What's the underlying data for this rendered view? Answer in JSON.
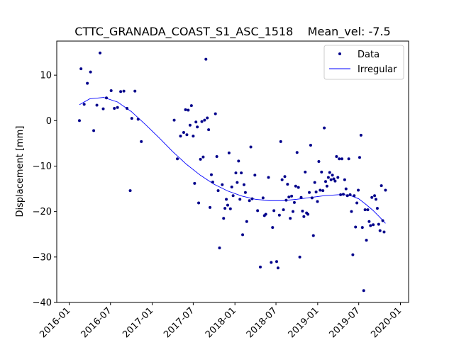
{
  "chart_data": {
    "type": "scatter",
    "title": "CTTC_GRANADA_COAST_S1_ASC_1518    Mean_vel: -7.5",
    "xlabel": "",
    "ylabel": "Displacement [mm]",
    "xlim": [
      "2015-11-07",
      "2020-02-06"
    ],
    "ylim": [
      -40,
      17.5
    ],
    "x_ticks": [
      "2016-01",
      "2016-07",
      "2017-01",
      "2017-07",
      "2018-01",
      "2018-07",
      "2019-01",
      "2019-07",
      "2020-01"
    ],
    "y_ticks": [
      10,
      0,
      -10,
      -20,
      -30,
      -40
    ],
    "grid": false,
    "legend": {
      "placement": "top-right",
      "entries": [
        "Data",
        "Irregular"
      ]
    },
    "colors": {
      "data": "#00008b",
      "irregular": "#0000ff"
    },
    "series": [
      {
        "name": "Data",
        "type": "scatter",
        "points": [
          [
            "2016-02-15",
            0.0
          ],
          [
            "2016-02-22",
            11.4
          ],
          [
            "2016-03-07",
            3.6
          ],
          [
            "2016-03-21",
            8.2
          ],
          [
            "2016-04-04",
            10.7
          ],
          [
            "2016-04-18",
            -2.2
          ],
          [
            "2016-05-02",
            3.4
          ],
          [
            "2016-05-16",
            14.9
          ],
          [
            "2016-05-30",
            2.6
          ],
          [
            "2016-06-13",
            5.0
          ],
          [
            "2016-07-04",
            6.6
          ],
          [
            "2016-07-18",
            2.7
          ],
          [
            "2016-08-01",
            2.9
          ],
          [
            "2016-08-15",
            6.4
          ],
          [
            "2016-08-29",
            6.5
          ],
          [
            "2016-09-12",
            2.7
          ],
          [
            "2016-09-26",
            -15.4
          ],
          [
            "2016-10-03",
            0.5
          ],
          [
            "2016-10-17",
            6.5
          ],
          [
            "2016-10-31",
            0.3
          ],
          [
            "2016-11-14",
            -4.6
          ],
          [
            "2017-04-08",
            0.1
          ],
          [
            "2017-04-22",
            -8.4
          ],
          [
            "2017-05-06",
            -3.4
          ],
          [
            "2017-05-20",
            -2.6
          ],
          [
            "2017-05-28",
            2.4
          ],
          [
            "2017-06-03",
            -3.1
          ],
          [
            "2017-06-09",
            2.3
          ],
          [
            "2017-06-17",
            -1.0
          ],
          [
            "2017-06-23",
            3.3
          ],
          [
            "2017-07-01",
            -3.4
          ],
          [
            "2017-07-07",
            -13.8
          ],
          [
            "2017-07-13",
            -0.3
          ],
          [
            "2017-07-19",
            -1.4
          ],
          [
            "2017-07-25",
            -18.1
          ],
          [
            "2017-08-02",
            -8.5
          ],
          [
            "2017-08-08",
            -0.2
          ],
          [
            "2017-08-14",
            -8.0
          ],
          [
            "2017-08-20",
            0.1
          ],
          [
            "2017-08-26",
            13.5
          ],
          [
            "2017-09-01",
            0.6
          ],
          [
            "2017-09-07",
            -2.0
          ],
          [
            "2017-09-13",
            -19.1
          ],
          [
            "2017-09-19",
            -11.9
          ],
          [
            "2017-09-25",
            -13.5
          ],
          [
            "2017-10-07",
            1.5
          ],
          [
            "2017-10-13",
            -7.9
          ],
          [
            "2017-10-19",
            -15.4
          ],
          [
            "2017-10-25",
            -28.0
          ],
          [
            "2017-11-06",
            -14.1
          ],
          [
            "2017-11-12",
            -21.5
          ],
          [
            "2017-11-18",
            -19.3
          ],
          [
            "2017-11-24",
            -17.3
          ],
          [
            "2017-11-30",
            -18.6
          ],
          [
            "2017-12-06",
            -7.1
          ],
          [
            "2017-12-12",
            -19.4
          ],
          [
            "2017-12-18",
            -14.6
          ],
          [
            "2017-12-24",
            -16.5
          ],
          [
            "2018-01-05",
            -11.5
          ],
          [
            "2018-01-11",
            -13.6
          ],
          [
            "2018-01-17",
            -8.9
          ],
          [
            "2018-01-23",
            -17.3
          ],
          [
            "2018-01-29",
            -11.5
          ],
          [
            "2018-02-04",
            -25.1
          ],
          [
            "2018-02-10",
            -14.1
          ],
          [
            "2018-02-16",
            -15.8
          ],
          [
            "2018-02-22",
            -22.2
          ],
          [
            "2018-03-06",
            -17.6
          ],
          [
            "2018-03-12",
            -5.8
          ],
          [
            "2018-03-18",
            -17.2
          ],
          [
            "2018-03-30",
            -12.0
          ],
          [
            "2018-04-11",
            -19.8
          ],
          [
            "2018-04-23",
            -32.2
          ],
          [
            "2018-05-05",
            -17.0
          ],
          [
            "2018-05-11",
            -20.9
          ],
          [
            "2018-05-17",
            -20.6
          ],
          [
            "2018-05-29",
            -12.5
          ],
          [
            "2018-06-10",
            -31.2
          ],
          [
            "2018-06-16",
            -23.5
          ],
          [
            "2018-06-22",
            -19.8
          ],
          [
            "2018-07-04",
            -31.0
          ],
          [
            "2018-07-10",
            -32.4
          ],
          [
            "2018-07-16",
            -20.8
          ],
          [
            "2018-07-22",
            -4.6
          ],
          [
            "2018-07-28",
            -13.0
          ],
          [
            "2018-08-03",
            -19.6
          ],
          [
            "2018-08-09",
            -12.3
          ],
          [
            "2018-08-15",
            -17.5
          ],
          [
            "2018-08-21",
            -14.0
          ],
          [
            "2018-08-27",
            -16.8
          ],
          [
            "2018-09-02",
            -21.5
          ],
          [
            "2018-09-08",
            -16.6
          ],
          [
            "2018-09-14",
            -20.0
          ],
          [
            "2018-09-20",
            -18.0
          ],
          [
            "2018-09-26",
            -14.4
          ],
          [
            "2018-10-02",
            -7.0
          ],
          [
            "2018-10-08",
            -14.7
          ],
          [
            "2018-10-14",
            -30.0
          ],
          [
            "2018-10-20",
            -16.9
          ],
          [
            "2018-10-26",
            -19.9
          ],
          [
            "2018-11-01",
            -21.1
          ],
          [
            "2018-11-07",
            -11.3
          ],
          [
            "2018-11-13",
            -20.3
          ],
          [
            "2018-11-19",
            -20.6
          ],
          [
            "2018-11-25",
            -15.8
          ],
          [
            "2018-12-01",
            -5.4
          ],
          [
            "2018-12-07",
            -17.0
          ],
          [
            "2018-12-13",
            -25.3
          ],
          [
            "2018-12-19",
            -13.6
          ],
          [
            "2018-12-25",
            -15.7
          ],
          [
            "2018-12-31",
            -17.8
          ],
          [
            "2019-01-06",
            -9.0
          ],
          [
            "2019-01-12",
            -15.3
          ],
          [
            "2019-01-18",
            -11.3
          ],
          [
            "2019-01-24",
            -15.4
          ],
          [
            "2019-01-30",
            -1.6
          ],
          [
            "2019-02-05",
            -13.4
          ],
          [
            "2019-02-11",
            -14.4
          ],
          [
            "2019-02-17",
            -12.5
          ],
          [
            "2019-02-23",
            -11.4
          ],
          [
            "2019-03-01",
            -13.0
          ],
          [
            "2019-03-07",
            -12.0
          ],
          [
            "2019-03-13",
            -12.8
          ],
          [
            "2019-03-19",
            -13.3
          ],
          [
            "2019-03-25",
            -7.9
          ],
          [
            "2019-03-31",
            -12.5
          ],
          [
            "2019-04-06",
            -8.4
          ],
          [
            "2019-04-12",
            -16.3
          ],
          [
            "2019-04-18",
            -8.4
          ],
          [
            "2019-04-24",
            -16.2
          ],
          [
            "2019-04-30",
            -13.0
          ],
          [
            "2019-05-06",
            -15.0
          ],
          [
            "2019-05-12",
            -16.5
          ],
          [
            "2019-05-18",
            -8.4
          ],
          [
            "2019-05-24",
            -16.3
          ],
          [
            "2019-05-30",
            -20.0
          ],
          [
            "2019-06-05",
            -29.5
          ],
          [
            "2019-06-11",
            -16.5
          ],
          [
            "2019-06-17",
            -23.4
          ],
          [
            "2019-06-23",
            -18.1
          ],
          [
            "2019-06-29",
            -15.3
          ],
          [
            "2019-07-05",
            -8.1
          ],
          [
            "2019-07-11",
            -3.2
          ],
          [
            "2019-07-17",
            -23.5
          ],
          [
            "2019-07-23",
            -37.4
          ],
          [
            "2019-07-29",
            -19.6
          ],
          [
            "2019-08-04",
            -26.3
          ],
          [
            "2019-08-10",
            -19.6
          ],
          [
            "2019-08-16",
            -22.2
          ],
          [
            "2019-08-22",
            -23.1
          ],
          [
            "2019-08-28",
            -16.9
          ],
          [
            "2019-09-03",
            -22.9
          ],
          [
            "2019-09-09",
            -16.5
          ],
          [
            "2019-09-15",
            -17.3
          ],
          [
            "2019-09-21",
            -19.3
          ],
          [
            "2019-09-27",
            -22.8
          ],
          [
            "2019-10-03",
            -24.2
          ],
          [
            "2019-10-09",
            -14.3
          ],
          [
            "2019-10-15",
            -22.0
          ],
          [
            "2019-10-21",
            -24.5
          ],
          [
            "2019-10-27",
            -15.3
          ]
        ]
      },
      {
        "name": "Irregular",
        "type": "line",
        "points": [
          [
            "2016-02-15",
            3.5
          ],
          [
            "2016-04-01",
            4.8
          ],
          [
            "2016-06-01",
            5.1
          ],
          [
            "2016-08-01",
            4.1
          ],
          [
            "2016-10-01",
            2.0
          ],
          [
            "2016-12-01",
            -0.8
          ],
          [
            "2017-02-01",
            -3.8
          ],
          [
            "2017-04-01",
            -6.8
          ],
          [
            "2017-06-01",
            -9.6
          ],
          [
            "2017-08-01",
            -12.0
          ],
          [
            "2017-10-01",
            -14.0
          ],
          [
            "2017-12-01",
            -15.5
          ],
          [
            "2018-02-01",
            -16.6
          ],
          [
            "2018-04-01",
            -17.3
          ],
          [
            "2018-06-01",
            -17.6
          ],
          [
            "2018-08-01",
            -17.6
          ],
          [
            "2018-10-01",
            -17.3
          ],
          [
            "2018-12-01",
            -16.9
          ],
          [
            "2019-02-01",
            -16.5
          ],
          [
            "2019-04-01",
            -16.3
          ],
          [
            "2019-05-01",
            -16.3
          ],
          [
            "2019-06-01",
            -16.6
          ],
          [
            "2019-07-01",
            -17.2
          ],
          [
            "2019-08-01",
            -18.4
          ],
          [
            "2019-09-01",
            -19.7
          ],
          [
            "2019-10-01",
            -21.2
          ],
          [
            "2019-10-27",
            -22.6
          ]
        ]
      }
    ]
  }
}
